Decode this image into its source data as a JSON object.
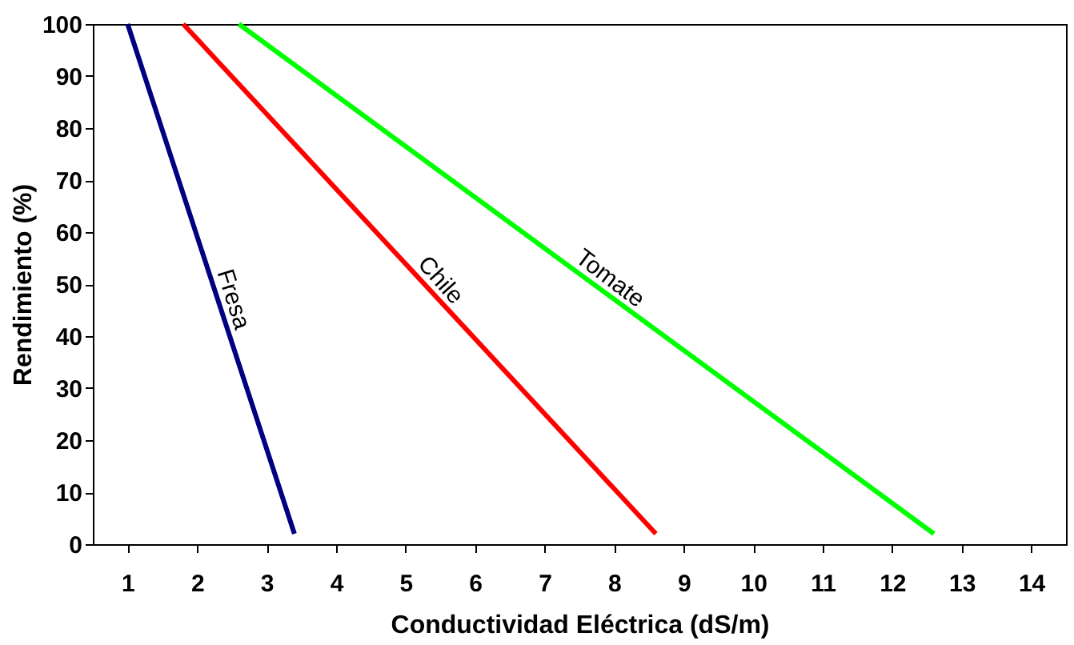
{
  "chart_data": {
    "type": "line",
    "xlabel": "Conductividad Eléctrica (dS/m)",
    "ylabel": "Rendimiento (%)",
    "xlim": [
      0.5,
      14.5
    ],
    "xticks": [
      1,
      2,
      3,
      4,
      5,
      6,
      7,
      8,
      9,
      10,
      11,
      12,
      13,
      14
    ],
    "ylim": [
      0,
      100
    ],
    "yticks": [
      0,
      10,
      20,
      30,
      40,
      50,
      60,
      70,
      80,
      90,
      100
    ],
    "marker": "none",
    "line_style": "solid",
    "series": [
      {
        "name": "Fresa",
        "color": "#000080",
        "x": [
          1.0,
          3.4
        ],
        "values": [
          100,
          2
        ]
      },
      {
        "name": "Chile",
        "color": "#ff0000",
        "x": [
          1.8,
          8.6
        ],
        "values": [
          100,
          2
        ]
      },
      {
        "name": "Tomate",
        "color": "#00ff00",
        "x": [
          2.6,
          12.6
        ],
        "values": [
          100,
          2
        ]
      }
    ]
  }
}
